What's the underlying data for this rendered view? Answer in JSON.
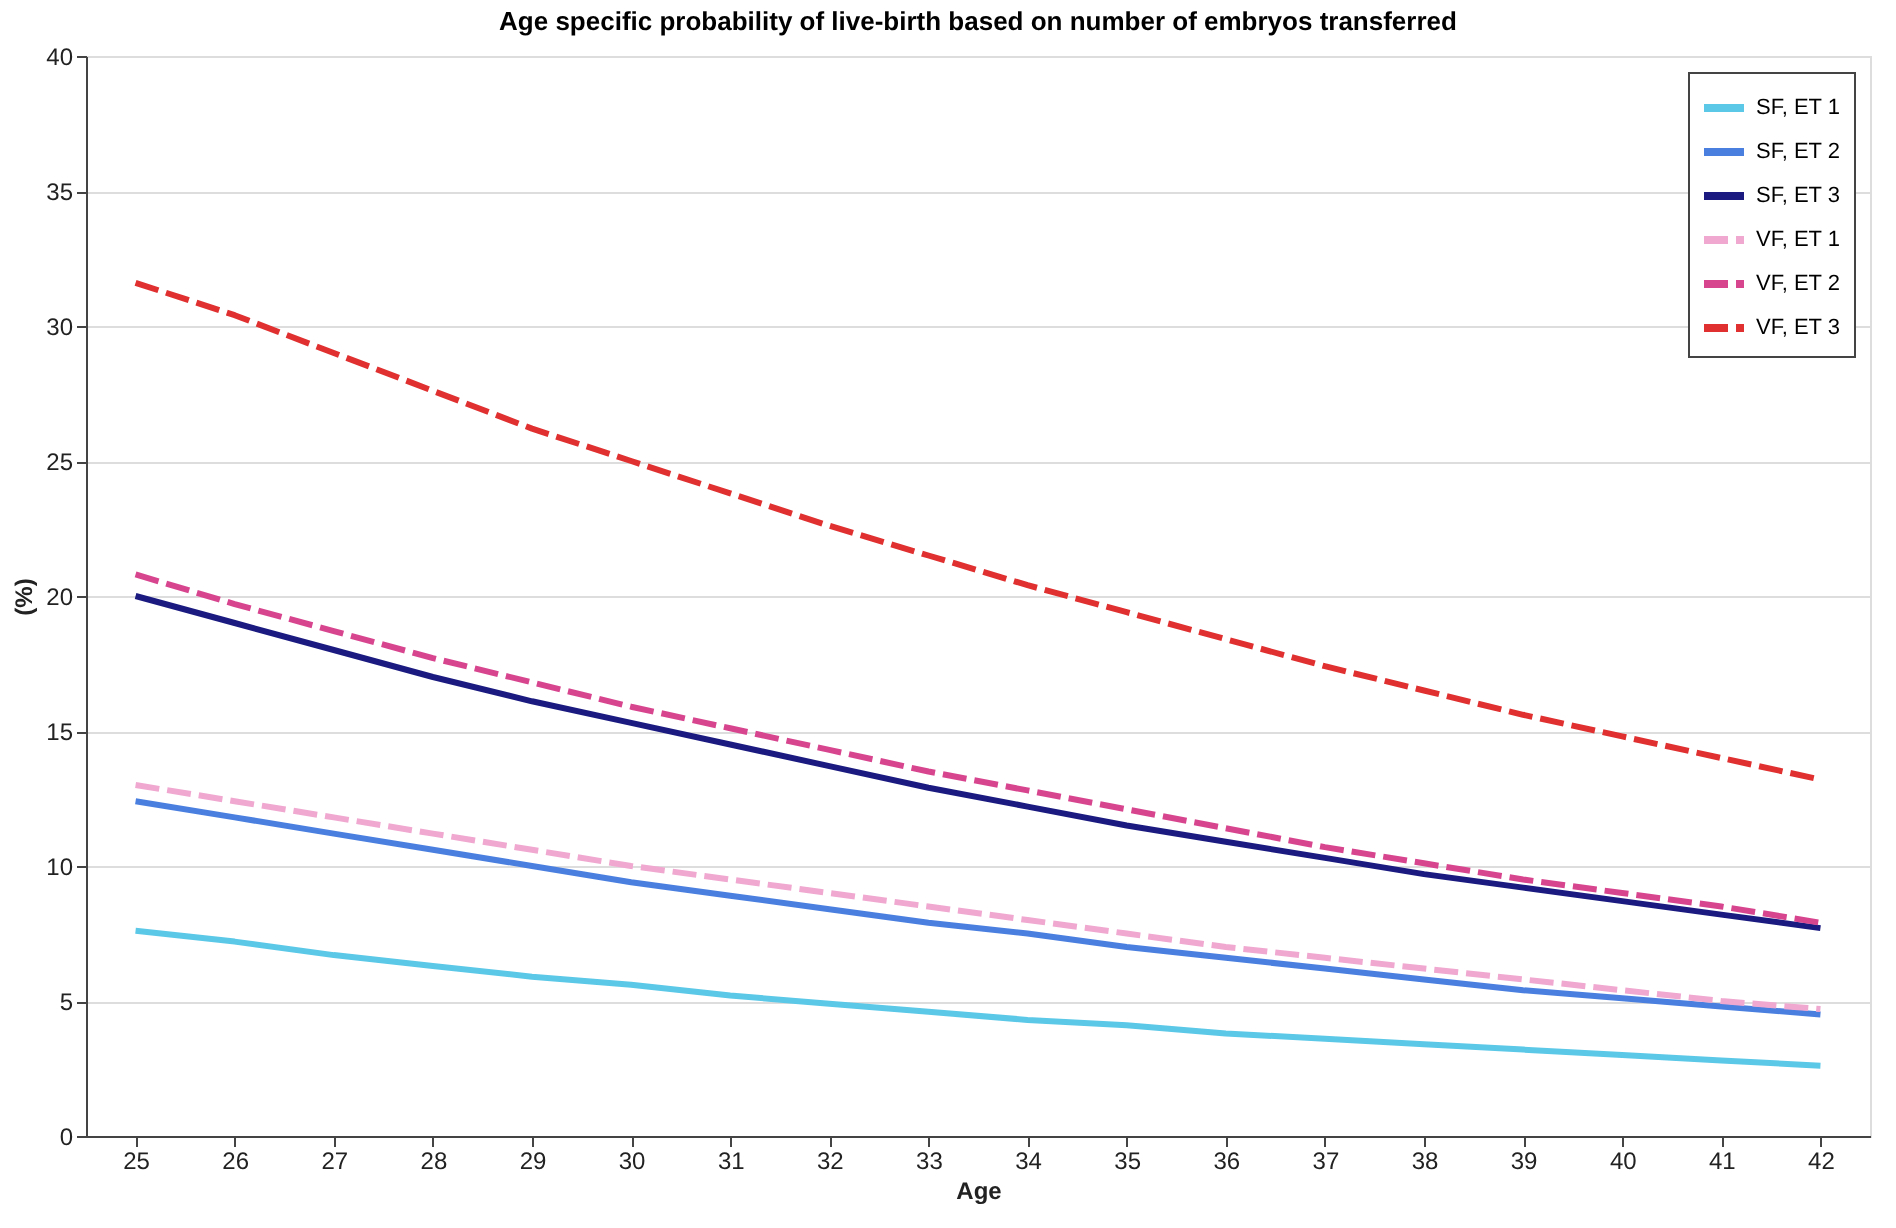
{
  "chart_data": {
    "type": "line",
    "title": "Age specific probability of live-birth based on number of embryos transferred",
    "xlabel": "Age",
    "ylabel": "(%)",
    "categories": [
      "25",
      "26",
      "27",
      "28",
      "29",
      "30",
      "31",
      "32",
      "33",
      "34",
      "35",
      "36",
      "37",
      "38",
      "39",
      "40",
      "41",
      "42"
    ],
    "ylim": [
      0,
      40
    ],
    "yticks": [
      0,
      5,
      10,
      15,
      20,
      25,
      30,
      35,
      40
    ],
    "grid": "y",
    "legend": "top right",
    "marker": "none",
    "series": [
      {
        "name": "SF, ET 1",
        "color": "#5bc8e8",
        "line_style": "solid",
        "values": [
          7.6,
          7.2,
          6.7,
          6.3,
          5.9,
          5.6,
          5.2,
          4.9,
          4.6,
          4.3,
          4.1,
          3.8,
          3.6,
          3.4,
          3.2,
          3.0,
          2.8,
          2.6
        ]
      },
      {
        "name": "SF, ET 2",
        "color": "#4a7fe0",
        "line_style": "solid",
        "values": [
          12.4,
          11.8,
          11.2,
          10.6,
          10.0,
          9.4,
          8.9,
          8.4,
          7.9,
          7.5,
          7.0,
          6.6,
          6.2,
          5.8,
          5.4,
          5.1,
          4.8,
          4.5
        ]
      },
      {
        "name": "SF, ET 3",
        "color": "#1a1a80",
        "line_style": "solid",
        "values": [
          20.0,
          19.0,
          18.0,
          17.0,
          16.1,
          15.3,
          14.5,
          13.7,
          12.9,
          12.2,
          11.5,
          10.9,
          10.3,
          9.7,
          9.2,
          8.7,
          8.2,
          7.7
        ]
      },
      {
        "name": "VF, ET 1",
        "color": "#f0a8d0",
        "line_style": "dashed",
        "values": [
          13.0,
          12.4,
          11.8,
          11.2,
          10.6,
          10.0,
          9.5,
          9.0,
          8.5,
          8.0,
          7.5,
          7.0,
          6.6,
          6.2,
          5.8,
          5.4,
          5.0,
          4.7
        ]
      },
      {
        "name": "VF, ET 2",
        "color": "#d8458f",
        "line_style": "dashed",
        "values": [
          20.8,
          19.7,
          18.7,
          17.7,
          16.8,
          15.9,
          15.1,
          14.3,
          13.5,
          12.8,
          12.1,
          11.4,
          10.7,
          10.1,
          9.5,
          9.0,
          8.5,
          7.9
        ]
      },
      {
        "name": "VF, ET 3",
        "color": "#e03030",
        "line_style": "dashed",
        "values": [
          31.6,
          30.4,
          29.0,
          27.6,
          26.2,
          25.0,
          23.8,
          22.6,
          21.5,
          20.4,
          19.4,
          18.4,
          17.4,
          16.5,
          15.6,
          14.8,
          14.0,
          13.2
        ]
      }
    ]
  }
}
